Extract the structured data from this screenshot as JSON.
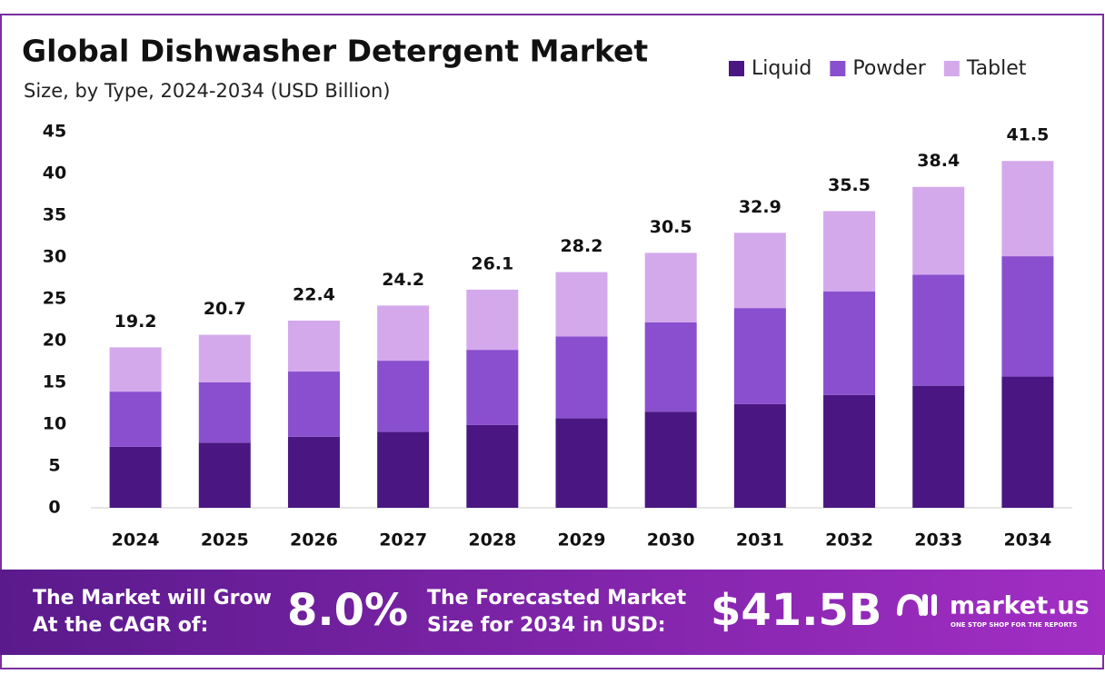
{
  "chart_data": {
    "type": "stacked-bar",
    "title": "Global Dishwasher Detergent Market",
    "subtitle": "Size, by Type, 2024-2034 (USD Billion)",
    "categories": [
      "2024",
      "2025",
      "2026",
      "2027",
      "2028",
      "2029",
      "2030",
      "2031",
      "2032",
      "2033",
      "2034"
    ],
    "series": [
      {
        "name": "Liquid",
        "color": "#4a1782",
        "values": [
          7.3,
          7.8,
          8.5,
          9.1,
          9.9,
          10.7,
          11.5,
          12.4,
          13.5,
          14.6,
          15.7
        ]
      },
      {
        "name": "Powder",
        "color": "#8a4fcf",
        "values": [
          6.6,
          7.2,
          7.8,
          8.5,
          9.0,
          9.8,
          10.7,
          11.5,
          12.4,
          13.3,
          14.4
        ]
      },
      {
        "name": "Tablet",
        "color": "#d3a9ec",
        "values": [
          5.3,
          5.7,
          6.1,
          6.6,
          7.2,
          7.7,
          8.3,
          9.0,
          9.6,
          10.5,
          11.4
        ]
      }
    ],
    "totals": [
      19.2,
      20.7,
      22.4,
      24.2,
      26.1,
      28.2,
      30.5,
      32.9,
      35.5,
      38.4,
      41.5
    ],
    "ylim": [
      0,
      45
    ],
    "yticks": [
      0,
      5,
      10,
      15,
      20,
      25,
      30,
      35,
      40,
      45
    ],
    "grid": false
  },
  "footer": {
    "cagr_text": "The Market will Grow At the CAGR of:",
    "cagr": "8.0%",
    "forecast_text": "The Forecasted Market Size for 2034 in USD:",
    "forecast": "$41.5B",
    "brand": "market.us",
    "tagline": "ONE STOP SHOP FOR THE REPORTS"
  }
}
